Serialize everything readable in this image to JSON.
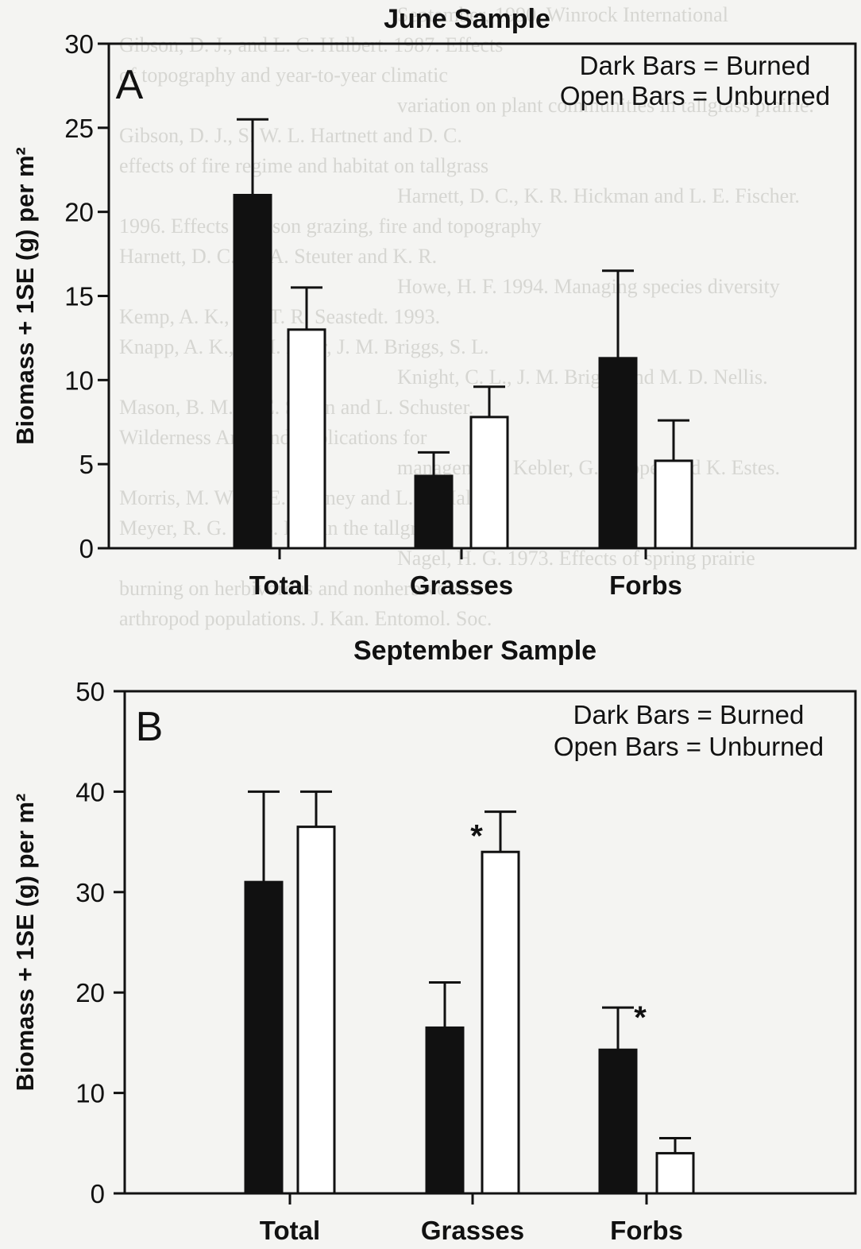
{
  "chart_data": [
    {
      "type": "bar",
      "panel_label": "A",
      "title": "June Sample",
      "ylabel": "Biomass + 1SE (g) per m²",
      "ylim": [
        0,
        30
      ],
      "yticks": [
        0,
        5,
        10,
        15,
        20,
        25,
        30
      ],
      "categories": [
        "Total",
        "Grasses",
        "Forbs"
      ],
      "legend": [
        "Dark Bars = Burned",
        "Open Bars = Unburned"
      ],
      "legend_position": "top-right",
      "grid": false,
      "series": [
        {
          "values": [
            21,
            4.3,
            11.3
          ],
          "errors": [
            4.5,
            1.4,
            5.2
          ],
          "fill": "#111111"
        },
        {
          "values": [
            13,
            7.8,
            5.2
          ],
          "errors": [
            2.5,
            1.8,
            2.4
          ],
          "fill": "#ffffff"
        }
      ],
      "significance": [
        [
          false,
          false
        ],
        [
          false,
          false
        ],
        [
          false,
          false
        ]
      ]
    },
    {
      "type": "bar",
      "panel_label": "B",
      "title": "September Sample",
      "ylabel": "Biomass + 1SE (g) per m²",
      "ylim": [
        0,
        50
      ],
      "yticks": [
        0,
        10,
        20,
        30,
        40,
        50
      ],
      "categories": [
        "Total",
        "Grasses",
        "Forbs"
      ],
      "legend": [
        "Dark Bars = Burned",
        "Open Bars = Unburned"
      ],
      "legend_position": "top-right",
      "grid": false,
      "series": [
        {
          "values": [
            31,
            16.5,
            14.3
          ],
          "errors": [
            9,
            4.5,
            4.2
          ],
          "fill": "#111111"
        },
        {
          "values": [
            36.5,
            34,
            4
          ],
          "errors": [
            3.5,
            4,
            1.5
          ],
          "fill": "#ffffff"
        }
      ],
      "significance": [
        [
          false,
          false
        ],
        [
          false,
          true
        ],
        [
          true,
          false
        ]
      ]
    }
  ],
  "background": {
    "lines": [
      "September, 1990. Winrock International",
      "Gibson, D. J., and L. C. Hulbert. 1987. Effects",
      "of topography and year-to-year climatic",
      "variation on plant communities in tallgrass prairie.",
      "Gibson, D. J., S. W. L. Hartnett and D. C.",
      "effects of fire regime and habitat on tallgrass",
      "Harnett, D. C., K. R. Hickman and L. E. Fischer.",
      "1996. Effects of bison grazing, fire and topography",
      "Harnett, D. C., A. A. Steuter and K. R.",
      "Howe, H. F. 1994. Managing species diversity",
      "Kemp, A. K., and T. R. Seastedt. 1993.",
      "Knapp, A. K., J. M. Blair, J. M. Briggs, S. L.",
      "Knight, C. L., J. M. Briggs and M. D. Nellis.",
      "Mason, B. M., J. E. Skeen and L. Schuster.",
      "Wilderness Area and implications for",
      "management. Kebler, G. Hooper and K. Estes.",
      "Morris, M. W., T. E. Rooney and L. L. Hall.",
      "Meyer, R. G. 1993. Fire in the tallgrass",
      "Nagel, H. G. 1973. Effects of spring prairie",
      "burning on herbivorous and nonherbivorous",
      "arthropod populations. J. Kan. Entomol. Soc."
    ]
  }
}
